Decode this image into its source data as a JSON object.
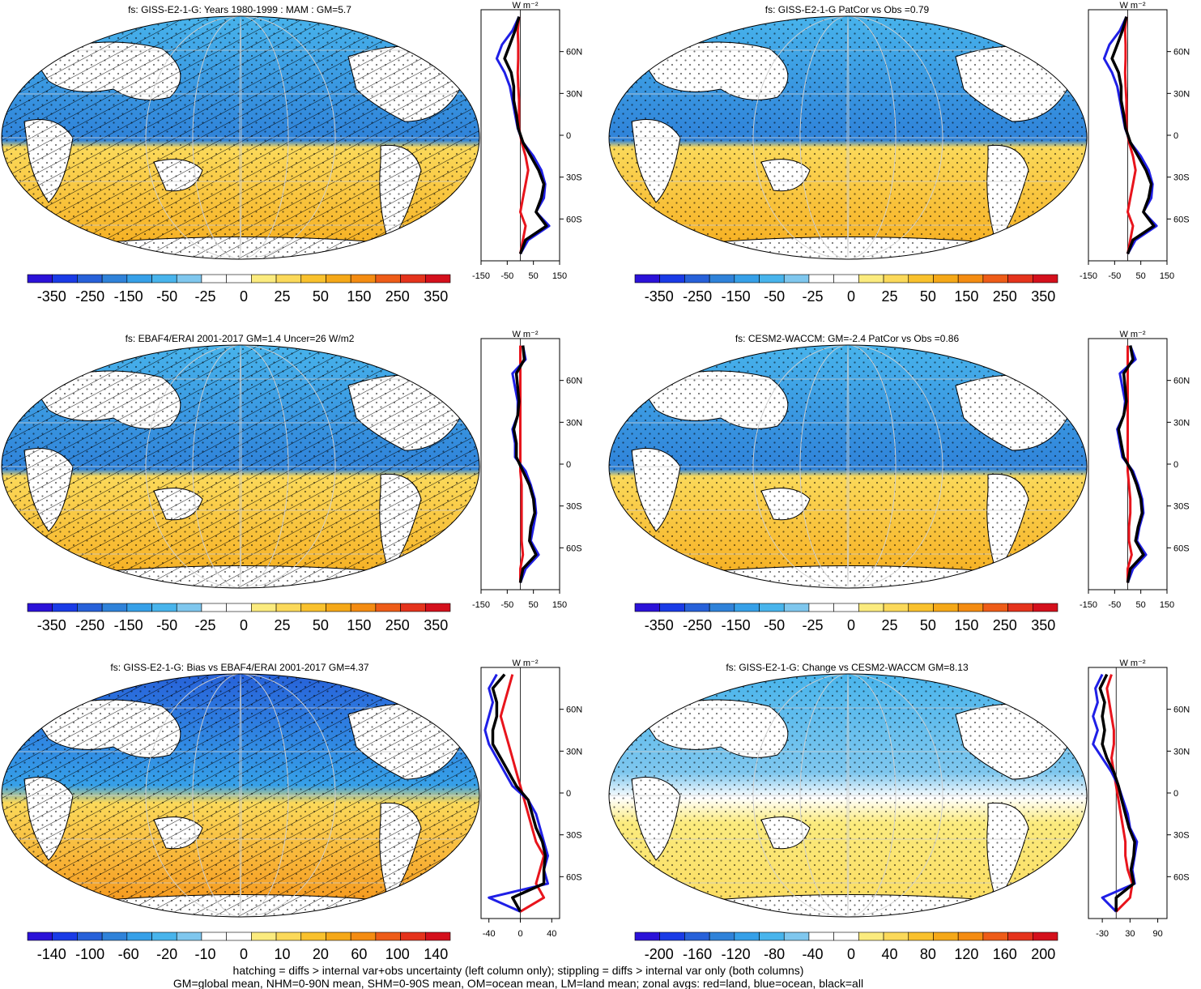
{
  "footer": [
    "hatching = diffs > internal var+obs uncertainty (left column only); stippling = diffs > internal var only (both columns)",
    "GM=global mean, NHM=0-90N mean, SHM=0-90S mean, OM=ocean mean, LM=land mean; zonal avgs: red=land, blue=ocean, black=all"
  ],
  "colors": {
    "land_line": "#e8141c",
    "ocean_line": "#1f1fe6",
    "all_line": "#000000",
    "palette": [
      "#2b12d8",
      "#1a3be6",
      "#2761d9",
      "#2f82d9",
      "#36a0e8",
      "#48b4ec",
      "#7fc7ee",
      "#ffffff",
      "#ffffff",
      "#fbeb7e",
      "#fbd95a",
      "#f9c12d",
      "#f5a818",
      "#f48c12",
      "#ee5c18",
      "#e5331c",
      "#d4101c"
    ]
  },
  "chart_data": [
    {
      "type": "heatmap",
      "title": "fs: GISS-E2-1-G: Years 1980-1999 : MAM : GM=5.7",
      "colorbar_labels": [
        "-350",
        "-250",
        "-150",
        "-50",
        "-25",
        "0",
        "25",
        "50",
        "150",
        "250",
        "350"
      ],
      "hatching": true,
      "zonal": {
        "type": "line",
        "unit": "W m⁻²",
        "xlim": [
          -150,
          150
        ],
        "x_ticks": [
          "-150",
          "-50",
          "50",
          "150"
        ],
        "lat_ticks": [
          "60N",
          "30N",
          "0",
          "30S",
          "60S"
        ],
        "lat_values": [
          60,
          30,
          0,
          -30,
          -60
        ],
        "lat": [
          85,
          75,
          65,
          55,
          45,
          35,
          25,
          15,
          5,
          -5,
          -15,
          -25,
          -35,
          -45,
          -55,
          -65,
          -75,
          -85
        ],
        "series": [
          {
            "name": "land",
            "values": [
              -5,
              -10,
              -8,
              -8,
              -10,
              -8,
              -5,
              -5,
              -5,
              5,
              20,
              30,
              20,
              10,
              0,
              20,
              10,
              0
            ]
          },
          {
            "name": "ocean",
            "values": [
              -5,
              -30,
              -70,
              -90,
              -60,
              -40,
              -30,
              -20,
              -10,
              10,
              50,
              80,
              95,
              90,
              60,
              110,
              30,
              0
            ]
          },
          {
            "name": "all",
            "values": [
              -5,
              -20,
              -40,
              -60,
              -35,
              -25,
              -25,
              -15,
              -8,
              10,
              40,
              70,
              90,
              80,
              60,
              100,
              20,
              0
            ]
          }
        ]
      }
    },
    {
      "type": "heatmap",
      "title": "fs: GISS-E2-1-G PatCor vs Obs =0.79",
      "colorbar_labels": [
        "-350",
        "-250",
        "-150",
        "-50",
        "-25",
        "0",
        "25",
        "50",
        "150",
        "250",
        "350"
      ],
      "hatching": false,
      "zonal": {
        "type": "line",
        "unit": "W m⁻²",
        "xlim": [
          -150,
          150
        ],
        "x_ticks": [
          "-150",
          "-50",
          "50",
          "150"
        ],
        "lat_ticks": [
          "60N",
          "30N",
          "0",
          "30S",
          "60S"
        ],
        "lat_values": [
          60,
          30,
          0,
          -30,
          -60
        ],
        "lat": [
          85,
          75,
          65,
          55,
          45,
          35,
          25,
          15,
          5,
          -5,
          -15,
          -25,
          -35,
          -45,
          -55,
          -65,
          -75,
          -85
        ],
        "series": [
          {
            "name": "land",
            "values": [
              -5,
              -10,
              -8,
              -8,
              -10,
              -8,
              -5,
              -5,
              -5,
              5,
              20,
              30,
              20,
              10,
              0,
              20,
              10,
              0
            ]
          },
          {
            "name": "ocean",
            "values": [
              -5,
              -30,
              -70,
              -90,
              -60,
              -40,
              -30,
              -20,
              -10,
              10,
              50,
              80,
              95,
              90,
              60,
              110,
              30,
              0
            ]
          },
          {
            "name": "all",
            "values": [
              -5,
              -20,
              -40,
              -60,
              -35,
              -25,
              -25,
              -15,
              -8,
              10,
              40,
              70,
              90,
              80,
              60,
              100,
              20,
              0
            ]
          }
        ]
      }
    },
    {
      "type": "heatmap",
      "title": "fs: EBAF4/ERAI 2001-2017 GM=1.4 Uncer=26 W/m2",
      "colorbar_labels": [
        "-350",
        "-250",
        "-150",
        "-50",
        "-25",
        "0",
        "25",
        "50",
        "150",
        "250",
        "350"
      ],
      "hatching": true,
      "zonal": {
        "type": "line",
        "unit": "W m⁻²",
        "xlim": [
          -150,
          150
        ],
        "x_ticks": [
          "-150",
          "-50",
          "50",
          "150"
        ],
        "lat_ticks": [
          "60N",
          "30N",
          "0",
          "30S",
          "60S"
        ],
        "lat_values": [
          60,
          30,
          0,
          -30,
          -60
        ],
        "lat": [
          85,
          75,
          65,
          55,
          45,
          35,
          25,
          15,
          5,
          -5,
          -15,
          -25,
          -35,
          -45,
          -55,
          -65,
          -75,
          -85
        ],
        "series": [
          {
            "name": "land",
            "values": [
              0,
              0,
              0,
              0,
              0,
              0,
              0,
              0,
              0,
              0,
              5,
              5,
              5,
              5,
              5,
              10,
              0,
              0
            ]
          },
          {
            "name": "ocean",
            "values": [
              10,
              20,
              -30,
              -20,
              -10,
              -10,
              -30,
              -20,
              -20,
              20,
              40,
              55,
              60,
              50,
              40,
              70,
              20,
              0
            ]
          },
          {
            "name": "all",
            "values": [
              10,
              15,
              -15,
              -10,
              -5,
              -10,
              -25,
              -15,
              -15,
              10,
              35,
              50,
              55,
              40,
              35,
              60,
              10,
              0
            ]
          }
        ]
      }
    },
    {
      "type": "heatmap",
      "title": "fs: CESM2-WACCM: GM=-2.4 PatCor vs Obs =0.86",
      "colorbar_labels": [
        "-350",
        "-250",
        "-150",
        "-50",
        "-25",
        "0",
        "25",
        "50",
        "150",
        "250",
        "350"
      ],
      "hatching": false,
      "zonal": {
        "type": "line",
        "unit": "W m⁻²",
        "xlim": [
          -150,
          150
        ],
        "x_ticks": [
          "-150",
          "-50",
          "50",
          "150"
        ],
        "lat_ticks": [
          "60N",
          "30N",
          "0",
          "30S",
          "60S"
        ],
        "lat_values": [
          60,
          30,
          0,
          -30,
          -60
        ],
        "lat": [
          85,
          75,
          65,
          55,
          45,
          35,
          25,
          15,
          5,
          -5,
          -15,
          -25,
          -35,
          -45,
          -55,
          -65,
          -75,
          -85
        ],
        "series": [
          {
            "name": "land",
            "values": [
              0,
              0,
              0,
              0,
              0,
              0,
              0,
              0,
              0,
              0,
              5,
              10,
              10,
              5,
              5,
              15,
              0,
              0
            ]
          },
          {
            "name": "ocean",
            "values": [
              10,
              30,
              -30,
              -20,
              -10,
              -15,
              -40,
              -30,
              -20,
              20,
              40,
              55,
              60,
              45,
              35,
              70,
              20,
              0
            ]
          },
          {
            "name": "all",
            "values": [
              10,
              20,
              -15,
              -10,
              -5,
              -15,
              -35,
              -25,
              -15,
              15,
              35,
              50,
              55,
              40,
              30,
              60,
              10,
              0
            ]
          }
        ]
      }
    },
    {
      "type": "heatmap",
      "title": "fs: GISS-E2-1-G: Bias vs EBAF4/ERAI 2001-2017 GM=4.37",
      "colorbar_labels": [
        "-140",
        "-100",
        "-60",
        "-20",
        "-10",
        "0",
        "10",
        "20",
        "60",
        "100",
        "140"
      ],
      "hatching": true,
      "zonal": {
        "type": "line",
        "unit": "W m⁻²",
        "xlim": [
          -50,
          50
        ],
        "x_ticks": [
          "-40",
          "0",
          "40"
        ],
        "lat_ticks": [
          "60N",
          "30N",
          "0",
          "30S",
          "60S"
        ],
        "lat_values": [
          60,
          30,
          0,
          -30,
          -60
        ],
        "lat": [
          85,
          75,
          65,
          55,
          45,
          35,
          25,
          15,
          5,
          -5,
          -15,
          -25,
          -35,
          -45,
          -55,
          -65,
          -75,
          -85
        ],
        "series": [
          {
            "name": "land",
            "values": [
              -10,
              -15,
              -20,
              -25,
              -20,
              -15,
              -10,
              -5,
              0,
              5,
              10,
              15,
              20,
              30,
              25,
              20,
              30,
              0
            ]
          },
          {
            "name": "ocean",
            "values": [
              -30,
              -40,
              -35,
              -40,
              -45,
              -40,
              -30,
              -20,
              -10,
              10,
              20,
              25,
              30,
              35,
              30,
              35,
              -40,
              0
            ]
          },
          {
            "name": "all",
            "values": [
              -20,
              -35,
              -30,
              -30,
              -35,
              -35,
              -25,
              -15,
              -5,
              10,
              15,
              20,
              28,
              32,
              30,
              30,
              -10,
              0
            ]
          }
        ]
      }
    },
    {
      "type": "heatmap",
      "title": "fs: GISS-E2-1-G: Change vs CESM2-WACCM GM=8.13",
      "colorbar_labels": [
        "-200",
        "-160",
        "-120",
        "-80",
        "-40",
        "0",
        "40",
        "80",
        "120",
        "160",
        "200"
      ],
      "hatching": false,
      "zonal": {
        "type": "line",
        "unit": "W m⁻²",
        "xlim": [
          -60,
          110
        ],
        "x_ticks": [
          "-30",
          "30",
          "90"
        ],
        "lat_ticks": [
          "60N",
          "30N",
          "0",
          "30S",
          "60S"
        ],
        "lat_values": [
          60,
          30,
          0,
          -30,
          -60
        ],
        "lat": [
          85,
          75,
          65,
          55,
          45,
          35,
          25,
          15,
          5,
          -5,
          -15,
          -25,
          -35,
          -45,
          -55,
          -65,
          -75,
          -85
        ],
        "series": [
          {
            "name": "land",
            "values": [
              -10,
              -20,
              -15,
              -10,
              -5,
              -5,
              -10,
              -5,
              0,
              5,
              10,
              15,
              20,
              20,
              25,
              35,
              30,
              0
            ]
          },
          {
            "name": "ocean",
            "values": [
              -30,
              -45,
              -40,
              -50,
              -40,
              -50,
              -30,
              -10,
              5,
              15,
              25,
              30,
              45,
              40,
              35,
              40,
              -30,
              0
            ]
          },
          {
            "name": "all",
            "values": [
              -20,
              -35,
              -25,
              -30,
              -25,
              -30,
              -20,
              -5,
              5,
              12,
              20,
              28,
              40,
              38,
              32,
              38,
              0,
              0
            ]
          }
        ]
      }
    }
  ]
}
